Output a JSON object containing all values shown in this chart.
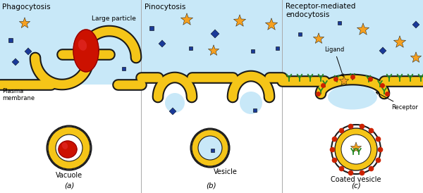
{
  "title_a": "Phagocytosis",
  "title_b": "Pinocytosis",
  "title_c": "Receptor-mediated\nendocytosis",
  "label_large_particle": "Large particle",
  "label_plasma_membrane": "Plasma\nmembrane",
  "label_vacuole": "Vacuole",
  "label_vesicle": "Vesicle",
  "label_coated_vesicle": "Coated vesicle",
  "label_ligand": "Ligand",
  "label_receptor": "Receptor",
  "label_a": "(a)",
  "label_b": "(b)",
  "label_c": "(c)",
  "membrane_color": "#F5C518",
  "membrane_outline": "#1a1a1a",
  "bg_color": "#ffffff",
  "fluid_color": "#c8e8f8",
  "particle_red": "#cc1100",
  "star_color": "#f5a020",
  "diamond_color": "#1a3a99",
  "square_color": "#1a3a99",
  "receptor_color": "#228822",
  "clathrin_color": "#cc2200",
  "figsize": [
    6.0,
    2.74
  ],
  "dpi": 100
}
